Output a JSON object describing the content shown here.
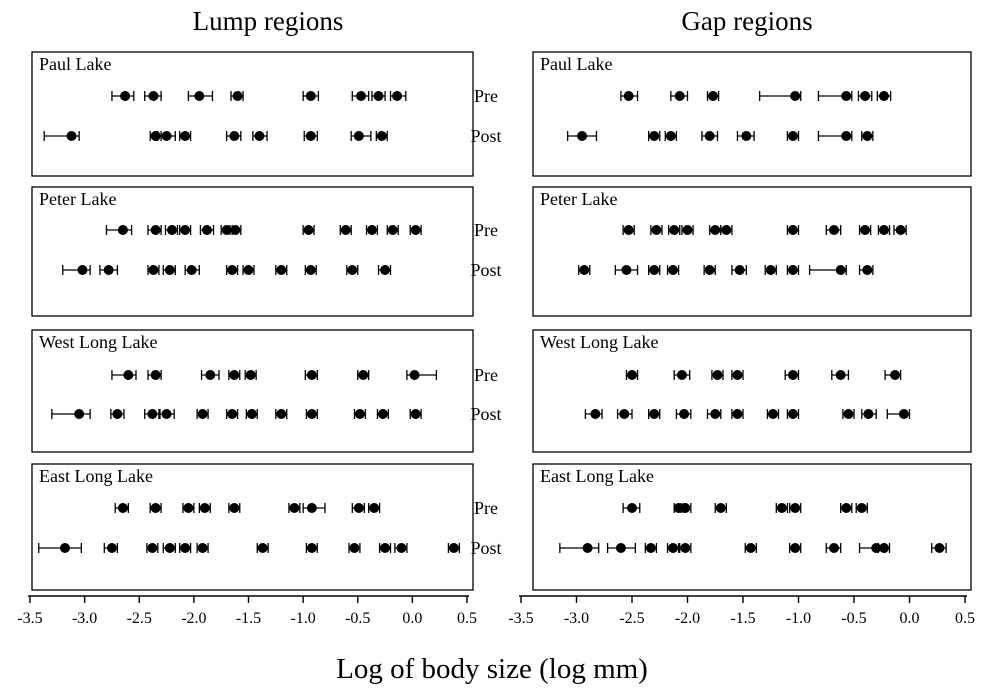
{
  "chart_data": {
    "type": "scatter",
    "xlabel": "Log of body size (log mm)",
    "xlim": [
      -3.5,
      0.5
    ],
    "x_ticks": [
      "-3.5",
      "-3.0",
      "-2.5",
      "-2.0",
      "-1.5",
      "-1.0",
      "-0.5",
      "0.0",
      "0.5"
    ],
    "row_labels": {
      "pre": "Pre",
      "post": "Post"
    },
    "error_bars": true,
    "grid": false,
    "columns": [
      {
        "title": "Lump regions",
        "panels": [
          {
            "lake": "Paul Lake",
            "pre": [
              {
                "x": -2.63,
                "lo": -2.75,
                "hi": -2.55
              },
              {
                "x": -2.37,
                "lo": -2.45,
                "hi": -2.3
              },
              {
                "x": -1.95,
                "lo": -2.05,
                "hi": -1.83
              },
              {
                "x": -1.6,
                "lo": -1.66,
                "hi": -1.55
              },
              {
                "x": -0.93,
                "lo": -1.0,
                "hi": -0.86
              },
              {
                "x": -0.47,
                "lo": -0.55,
                "hi": -0.4
              },
              {
                "x": -0.31,
                "lo": -0.37,
                "hi": -0.25
              },
              {
                "x": -0.14,
                "lo": -0.2,
                "hi": -0.06
              }
            ],
            "post": [
              {
                "x": -3.12,
                "lo": -3.37,
                "hi": -3.05
              },
              {
                "x": -2.35,
                "lo": -2.4,
                "hi": -2.3
              },
              {
                "x": -2.25,
                "lo": -2.33,
                "hi": -2.17
              },
              {
                "x": -2.08,
                "lo": -2.13,
                "hi": -2.03
              },
              {
                "x": -1.63,
                "lo": -1.7,
                "hi": -1.57
              },
              {
                "x": -1.4,
                "lo": -1.46,
                "hi": -1.33
              },
              {
                "x": -0.93,
                "lo": -0.99,
                "hi": -0.87
              },
              {
                "x": -0.49,
                "lo": -0.56,
                "hi": -0.38
              },
              {
                "x": -0.28,
                "lo": -0.33,
                "hi": -0.23
              }
            ]
          },
          {
            "lake": "Peter Lake",
            "pre": [
              {
                "x": -2.65,
                "lo": -2.8,
                "hi": -2.57
              },
              {
                "x": -2.35,
                "lo": -2.42,
                "hi": -2.3
              },
              {
                "x": -2.2,
                "lo": -2.26,
                "hi": -2.15
              },
              {
                "x": -2.08,
                "lo": -2.13,
                "hi": -2.03
              },
              {
                "x": -1.88,
                "lo": -1.94,
                "hi": -1.82
              },
              {
                "x": -1.7,
                "lo": -1.75,
                "hi": -1.65
              },
              {
                "x": -1.62,
                "lo": -1.67,
                "hi": -1.57
              },
              {
                "x": -0.95,
                "lo": -1.0,
                "hi": -0.9
              },
              {
                "x": -0.61,
                "lo": -0.66,
                "hi": -0.56
              },
              {
                "x": -0.37,
                "lo": -0.42,
                "hi": -0.32
              },
              {
                "x": -0.18,
                "lo": -0.23,
                "hi": -0.13
              },
              {
                "x": 0.03,
                "lo": -0.02,
                "hi": 0.08
              }
            ],
            "post": [
              {
                "x": -3.02,
                "lo": -3.2,
                "hi": -2.95
              },
              {
                "x": -2.78,
                "lo": -2.86,
                "hi": -2.7
              },
              {
                "x": -2.37,
                "lo": -2.42,
                "hi": -2.32
              },
              {
                "x": -2.22,
                "lo": -2.28,
                "hi": -2.17
              },
              {
                "x": -2.02,
                "lo": -2.08,
                "hi": -1.95
              },
              {
                "x": -1.65,
                "lo": -1.7,
                "hi": -1.6
              },
              {
                "x": -1.5,
                "lo": -1.55,
                "hi": -1.45
              },
              {
                "x": -1.2,
                "lo": -1.25,
                "hi": -1.15
              },
              {
                "x": -0.93,
                "lo": -0.98,
                "hi": -0.88
              },
              {
                "x": -0.55,
                "lo": -0.6,
                "hi": -0.5
              },
              {
                "x": -0.25,
                "lo": -0.31,
                "hi": -0.2
              }
            ]
          },
          {
            "lake": "West Long Lake",
            "pre": [
              {
                "x": -2.6,
                "lo": -2.75,
                "hi": -2.53
              },
              {
                "x": -2.35,
                "lo": -2.42,
                "hi": -2.3
              },
              {
                "x": -1.85,
                "lo": -1.93,
                "hi": -1.77
              },
              {
                "x": -1.63,
                "lo": -1.68,
                "hi": -1.58
              },
              {
                "x": -1.48,
                "lo": -1.53,
                "hi": -1.43
              },
              {
                "x": -0.92,
                "lo": -0.98,
                "hi": -0.87
              },
              {
                "x": -0.45,
                "lo": -0.5,
                "hi": -0.4
              },
              {
                "x": 0.02,
                "lo": -0.05,
                "hi": 0.22
              }
            ],
            "post": [
              {
                "x": -3.05,
                "lo": -3.3,
                "hi": -2.95
              },
              {
                "x": -2.7,
                "lo": -2.76,
                "hi": -2.64
              },
              {
                "x": -2.38,
                "lo": -2.45,
                "hi": -2.32
              },
              {
                "x": -2.25,
                "lo": -2.31,
                "hi": -2.18
              },
              {
                "x": -1.92,
                "lo": -1.97,
                "hi": -1.87
              },
              {
                "x": -1.65,
                "lo": -1.7,
                "hi": -1.6
              },
              {
                "x": -1.47,
                "lo": -1.52,
                "hi": -1.42
              },
              {
                "x": -1.2,
                "lo": -1.25,
                "hi": -1.15
              },
              {
                "x": -0.92,
                "lo": -0.97,
                "hi": -0.87
              },
              {
                "x": -0.48,
                "lo": -0.53,
                "hi": -0.43
              },
              {
                "x": -0.27,
                "lo": -0.32,
                "hi": -0.22
              },
              {
                "x": 0.03,
                "lo": -0.02,
                "hi": 0.08
              }
            ]
          },
          {
            "lake": "East Long Lake",
            "pre": [
              {
                "x": -2.65,
                "lo": -2.72,
                "hi": -2.6
              },
              {
                "x": -2.35,
                "lo": -2.4,
                "hi": -2.3
              },
              {
                "x": -2.05,
                "lo": -2.1,
                "hi": -2.0
              },
              {
                "x": -1.9,
                "lo": -1.95,
                "hi": -1.85
              },
              {
                "x": -1.63,
                "lo": -1.68,
                "hi": -1.58
              },
              {
                "x": -1.08,
                "lo": -1.13,
                "hi": -1.03
              },
              {
                "x": -0.92,
                "lo": -1.0,
                "hi": -0.8
              },
              {
                "x": -0.49,
                "lo": -0.55,
                "hi": -0.44
              },
              {
                "x": -0.35,
                "lo": -0.4,
                "hi": -0.3
              }
            ],
            "post": [
              {
                "x": -3.18,
                "lo": -3.42,
                "hi": -3.03
              },
              {
                "x": -2.75,
                "lo": -2.82,
                "hi": -2.7
              },
              {
                "x": -2.38,
                "lo": -2.43,
                "hi": -2.33
              },
              {
                "x": -2.22,
                "lo": -2.28,
                "hi": -2.17
              },
              {
                "x": -2.08,
                "lo": -2.13,
                "hi": -2.03
              },
              {
                "x": -1.92,
                "lo": -1.97,
                "hi": -1.87
              },
              {
                "x": -1.37,
                "lo": -1.42,
                "hi": -1.32
              },
              {
                "x": -0.92,
                "lo": -0.97,
                "hi": -0.87
              },
              {
                "x": -0.53,
                "lo": -0.58,
                "hi": -0.48
              },
              {
                "x": -0.25,
                "lo": -0.3,
                "hi": -0.2
              },
              {
                "x": -0.1,
                "lo": -0.16,
                "hi": -0.05
              },
              {
                "x": 0.38,
                "lo": 0.33,
                "hi": 0.43
              }
            ]
          }
        ]
      },
      {
        "title": "Gap regions",
        "panels": [
          {
            "lake": "Paul Lake",
            "pre": [
              {
                "x": -2.53,
                "lo": -2.6,
                "hi": -2.45
              },
              {
                "x": -2.07,
                "lo": -2.15,
                "hi": -2.0
              },
              {
                "x": -1.77,
                "lo": -1.82,
                "hi": -1.72
              },
              {
                "x": -1.03,
                "lo": -1.35,
                "hi": -0.98
              },
              {
                "x": -0.57,
                "lo": -0.82,
                "hi": -0.52
              },
              {
                "x": -0.4,
                "lo": -0.46,
                "hi": -0.34
              },
              {
                "x": -0.23,
                "lo": -0.29,
                "hi": -0.17
              }
            ],
            "post": [
              {
                "x": -2.95,
                "lo": -3.08,
                "hi": -2.82
              },
              {
                "x": -2.3,
                "lo": -2.35,
                "hi": -2.25
              },
              {
                "x": -2.15,
                "lo": -2.2,
                "hi": -2.1
              },
              {
                "x": -1.8,
                "lo": -1.87,
                "hi": -1.73
              },
              {
                "x": -1.47,
                "lo": -1.55,
                "hi": -1.4
              },
              {
                "x": -1.05,
                "lo": -1.1,
                "hi": -1.0
              },
              {
                "x": -0.57,
                "lo": -0.82,
                "hi": -0.52
              },
              {
                "x": -0.38,
                "lo": -0.43,
                "hi": -0.33
              }
            ]
          },
          {
            "lake": "Peter Lake",
            "pre": [
              {
                "x": -2.53,
                "lo": -2.58,
                "hi": -2.48
              },
              {
                "x": -2.28,
                "lo": -2.33,
                "hi": -2.23
              },
              {
                "x": -2.12,
                "lo": -2.17,
                "hi": -2.07
              },
              {
                "x": -2.0,
                "lo": -2.05,
                "hi": -1.95
              },
              {
                "x": -1.75,
                "lo": -1.8,
                "hi": -1.7
              },
              {
                "x": -1.65,
                "lo": -1.7,
                "hi": -1.6
              },
              {
                "x": -1.05,
                "lo": -1.1,
                "hi": -1.0
              },
              {
                "x": -0.68,
                "lo": -0.75,
                "hi": -0.62
              },
              {
                "x": -0.4,
                "lo": -0.45,
                "hi": -0.35
              },
              {
                "x": -0.23,
                "lo": -0.28,
                "hi": -0.18
              },
              {
                "x": -0.08,
                "lo": -0.14,
                "hi": -0.03
              }
            ],
            "post": [
              {
                "x": -2.93,
                "lo": -2.98,
                "hi": -2.88
              },
              {
                "x": -2.55,
                "lo": -2.65,
                "hi": -2.45
              },
              {
                "x": -2.3,
                "lo": -2.35,
                "hi": -2.25
              },
              {
                "x": -2.13,
                "lo": -2.18,
                "hi": -2.08
              },
              {
                "x": -1.8,
                "lo": -1.85,
                "hi": -1.75
              },
              {
                "x": -1.53,
                "lo": -1.6,
                "hi": -1.47
              },
              {
                "x": -1.25,
                "lo": -1.3,
                "hi": -1.2
              },
              {
                "x": -1.05,
                "lo": -1.1,
                "hi": -1.0
              },
              {
                "x": -0.62,
                "lo": -0.9,
                "hi": -0.57
              },
              {
                "x": -0.38,
                "lo": -0.45,
                "hi": -0.33
              }
            ]
          },
          {
            "lake": "West Long Lake",
            "pre": [
              {
                "x": -2.5,
                "lo": -2.55,
                "hi": -2.45
              },
              {
                "x": -2.05,
                "lo": -2.12,
                "hi": -1.98
              },
              {
                "x": -1.73,
                "lo": -1.78,
                "hi": -1.68
              },
              {
                "x": -1.55,
                "lo": -1.6,
                "hi": -1.5
              },
              {
                "x": -1.05,
                "lo": -1.12,
                "hi": -1.0
              },
              {
                "x": -0.62,
                "lo": -0.7,
                "hi": -0.55
              },
              {
                "x": -0.13,
                "lo": -0.22,
                "hi": -0.08
              }
            ],
            "post": [
              {
                "x": -2.83,
                "lo": -2.92,
                "hi": -2.77
              },
              {
                "x": -2.57,
                "lo": -2.63,
                "hi": -2.5
              },
              {
                "x": -2.3,
                "lo": -2.35,
                "hi": -2.25
              },
              {
                "x": -2.03,
                "lo": -2.1,
                "hi": -1.97
              },
              {
                "x": -1.75,
                "lo": -1.82,
                "hi": -1.7
              },
              {
                "x": -1.55,
                "lo": -1.6,
                "hi": -1.5
              },
              {
                "x": -1.23,
                "lo": -1.28,
                "hi": -1.18
              },
              {
                "x": -1.05,
                "lo": -1.1,
                "hi": -1.0
              },
              {
                "x": -0.55,
                "lo": -0.6,
                "hi": -0.5
              },
              {
                "x": -0.37,
                "lo": -0.43,
                "hi": -0.3
              },
              {
                "x": -0.05,
                "lo": -0.2,
                "hi": 0.0
              }
            ]
          },
          {
            "lake": "East Long Lake",
            "pre": [
              {
                "x": -2.5,
                "lo": -2.58,
                "hi": -2.43
              },
              {
                "x": -2.08,
                "lo": -2.12,
                "hi": -2.04
              },
              {
                "x": -2.02,
                "lo": -2.06,
                "hi": -1.97
              },
              {
                "x": -1.7,
                "lo": -1.75,
                "hi": -1.65
              },
              {
                "x": -1.15,
                "lo": -1.2,
                "hi": -1.1
              },
              {
                "x": -1.03,
                "lo": -1.08,
                "hi": -0.98
              },
              {
                "x": -0.57,
                "lo": -0.62,
                "hi": -0.52
              },
              {
                "x": -0.43,
                "lo": -0.48,
                "hi": -0.38
              }
            ],
            "post": [
              {
                "x": -2.9,
                "lo": -3.15,
                "hi": -2.8
              },
              {
                "x": -2.6,
                "lo": -2.72,
                "hi": -2.47
              },
              {
                "x": -2.33,
                "lo": -2.38,
                "hi": -2.28
              },
              {
                "x": -2.13,
                "lo": -2.18,
                "hi": -2.08
              },
              {
                "x": -2.02,
                "lo": -2.07,
                "hi": -1.97
              },
              {
                "x": -1.43,
                "lo": -1.48,
                "hi": -1.38
              },
              {
                "x": -1.03,
                "lo": -1.08,
                "hi": -0.98
              },
              {
                "x": -0.68,
                "lo": -0.75,
                "hi": -0.62
              },
              {
                "x": -0.3,
                "lo": -0.45,
                "hi": -0.22
              },
              {
                "x": -0.23,
                "lo": -0.28,
                "hi": -0.18
              },
              {
                "x": 0.27,
                "lo": 0.2,
                "hi": 0.33
              }
            ]
          }
        ]
      }
    ]
  }
}
